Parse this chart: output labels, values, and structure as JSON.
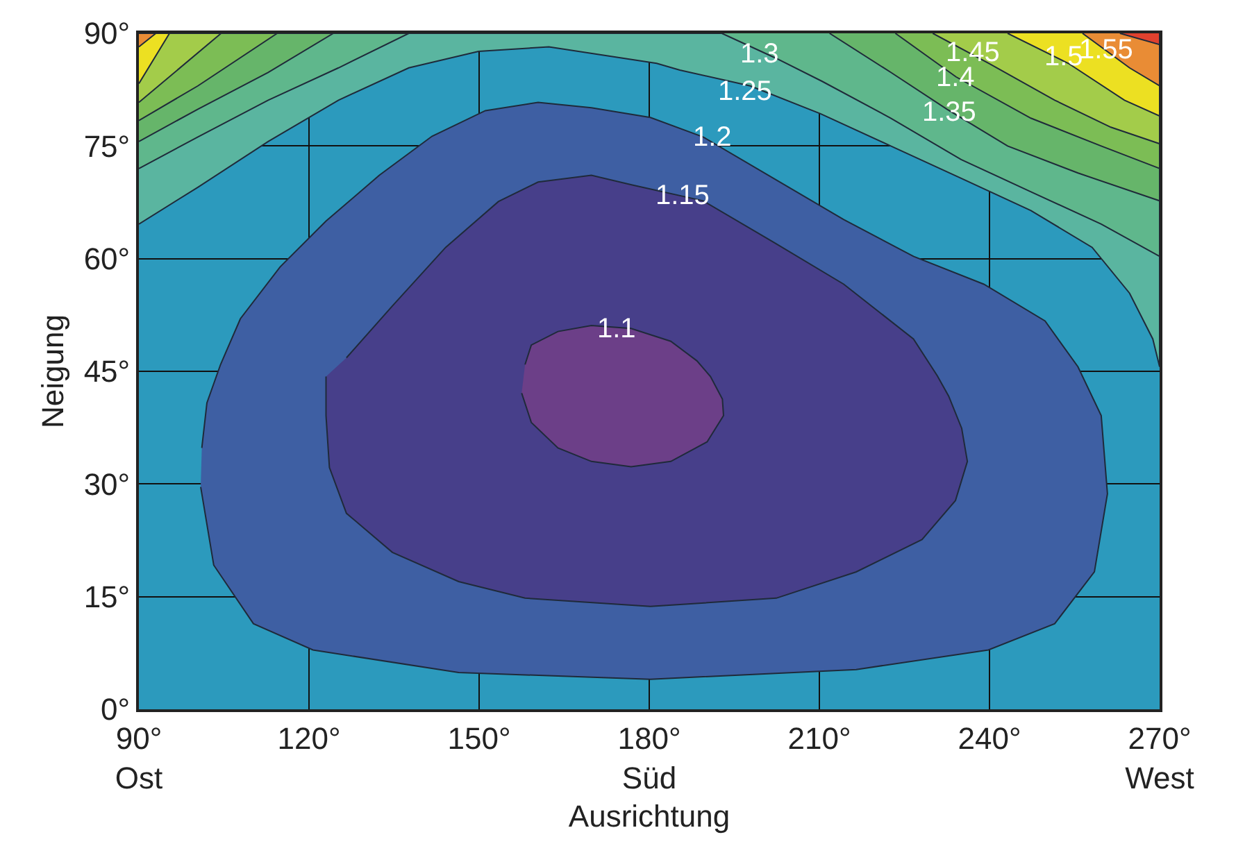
{
  "chart_data": {
    "type": "area",
    "xlabel": "Ausrichtung",
    "ylabel": "Neigung",
    "series": [
      {
        "color": "#5ab5a0",
        "x": [
          90,
          100.4,
          112.8,
          125.2,
          137.6,
          149.9,
          162.3,
          181.3,
          185.4,
          197.8,
          210.2,
          222.6,
          235,
          247.3,
          258.1,
          264.7,
          268.8,
          270,
          270,
          90
        ],
        "values": [
          64.6,
          69.5,
          75.6,
          81.1,
          85.4,
          87.6,
          88.2,
          86,
          85.1,
          83,
          79.3,
          75,
          70.7,
          66.4,
          61.5,
          55.4,
          49.3,
          45.6,
          90,
          90
        ]
      },
      {
        "color": "#5fb78c",
        "x": [
          90,
          100.4,
          112.8,
          125.2,
          137.6,
          90,
          null,
          192.8,
          202.3,
          210.5,
          222.6,
          235,
          247.3,
          259.7,
          270,
          270
        ],
        "values": [
          72,
          76.2,
          81.1,
          85.4,
          90,
          90,
          null,
          90,
          86.7,
          83.6,
          78.7,
          73.2,
          68.9,
          64.6,
          60.3,
          90
        ]
      },
      {
        "color": "#66b56a",
        "x": [
          90,
          100.4,
          112.8,
          124.3,
          90,
          null,
          211.8,
          222.6,
          232.5,
          243.2,
          255.6,
          270,
          270
        ],
        "values": [
          75.6,
          79.9,
          84.8,
          90,
          90,
          null,
          90,
          84.8,
          79.9,
          75,
          71.4,
          67.7,
          90
        ]
      },
      {
        "color": "#7cbd55",
        "x": [
          90,
          100.4,
          114.4,
          90,
          null,
          223.4,
          234.1,
          247.3,
          259.7,
          270,
          270
        ],
        "values": [
          78.4,
          83,
          90,
          90,
          null,
          90,
          84.2,
          78.7,
          75,
          72,
          90
        ]
      },
      {
        "color": "#a3cc4a",
        "x": [
          90,
          104.5,
          90,
          null,
          230,
          239.9,
          251.5,
          261.4,
          270,
          270
        ],
        "values": [
          80.8,
          90,
          90,
          null,
          90,
          86,
          81.1,
          77.5,
          75.3,
          90
        ]
      },
      {
        "color": "#ece022",
        "x": [
          90,
          95.4,
          90,
          null,
          243.2,
          253.9,
          263.8,
          270,
          270
        ],
        "values": [
          83.3,
          90,
          90,
          null,
          90,
          86,
          81.1,
          79,
          90
        ]
      },
      {
        "color": "#e98c35",
        "x": [
          90,
          93,
          90,
          null,
          256.4,
          264.7,
          270,
          270
        ],
        "values": [
          88.2,
          90,
          90,
          null,
          90,
          85.4,
          83,
          90
        ]
      },
      {
        "color": "#e0412e",
        "x": [
          263,
          270,
          270
        ],
        "values": [
          90,
          88.5,
          90
        ]
      },
      {
        "color": "#3e5fa3",
        "x": [
          100.9,
          103.2,
          110.2,
          120.7,
          146.4,
          180.2,
          216.5,
          239.8,
          251.5,
          258.5,
          260.8,
          259.7,
          255.6,
          249.8,
          239,
          226.6,
          214.3,
          201.9,
          189.5,
          180.2,
          169.8,
          160.4,
          151.1,
          141.7,
          132.4,
          123,
          114.9,
          107.9,
          104.4,
          102,
          101.1
        ],
        "values": [
          29.6,
          19.2,
          11.4,
          7.9,
          4.9,
          4,
          5.3,
          7.9,
          11.4,
          18.3,
          28.7,
          39.1,
          45.6,
          51.7,
          56.6,
          60.3,
          65.2,
          70.7,
          76.2,
          78.8,
          80.1,
          80.8,
          79.7,
          76.3,
          71.1,
          65,
          58.9,
          52,
          45.9,
          40.8,
          34.8
        ]
      },
      {
        "color": "#473f8a",
        "x": [
          123,
          123,
          123.6,
          126.6,
          134.7,
          146.4,
          158.1,
          180.2,
          202.4,
          216.5,
          228.1,
          234,
          236.1,
          235.1,
          232.8,
          230.8,
          226.6,
          214.3,
          201.9,
          189.5,
          177,
          169.8,
          160.4,
          153.4,
          144.1,
          134.7,
          126.6
        ],
        "values": [
          44.3,
          39.1,
          32.2,
          26.1,
          20.9,
          17,
          14.8,
          13.7,
          14.8,
          18.3,
          22.6,
          27.8,
          33,
          37.4,
          41.7,
          44.4,
          49.3,
          56.6,
          62.2,
          67.7,
          69.8,
          71.1,
          70.2,
          67.6,
          61.5,
          53.7,
          46.8
        ]
      },
      {
        "color": "#6c3f88",
        "x": [
          157.5,
          159.2,
          163.9,
          169.8,
          176.8,
          183.8,
          190.2,
          193.1,
          192.9,
          190.8,
          188.4,
          183.8,
          176.8,
          169.8,
          163.9,
          159.2,
          158.1
        ],
        "values": [
          42.1,
          38.2,
          34.8,
          33,
          32.3,
          33,
          35.6,
          39.1,
          41.3,
          44.3,
          46.4,
          49,
          50.7,
          51.1,
          50.3,
          48.5,
          45.9
        ]
      }
    ],
    "bands": [
      {
        "axis": "y",
        "from": 0,
        "to": 90,
        "color": "#2c9abd"
      }
    ],
    "annotations": [
      {
        "text": "1.1",
        "x": 174.2,
        "y": 50.7
      },
      {
        "text": "1.15",
        "x": 185.8,
        "y": 68.3
      },
      {
        "text": "1.2",
        "x": 191.2,
        "y": 76.2
      },
      {
        "text": "1.25",
        "x": 196.9,
        "y": 82.3
      },
      {
        "text": "1.3",
        "x": 199.4,
        "y": 87.2
      },
      {
        "text": "1.35",
        "x": 232.8,
        "y": 79.5
      },
      {
        "text": "1.4",
        "x": 234.1,
        "y": 84.1
      },
      {
        "text": "1.45",
        "x": 237,
        "y": 87.4
      },
      {
        "text": "1.5",
        "x": 253.1,
        "y": 86.9
      },
      {
        "text": "1.55",
        "x": 260.5,
        "y": 87.7
      }
    ],
    "xlim": [
      90,
      270
    ],
    "xticks": [
      {
        "value": 90,
        "label": "90°\nOst"
      },
      {
        "value": 120,
        "label": "120°"
      },
      {
        "value": 150,
        "label": "150°"
      },
      {
        "value": 180,
        "label": "180°\nSüd"
      },
      {
        "value": 210,
        "label": "210°"
      },
      {
        "value": 240,
        "label": "240°"
      },
      {
        "value": 270,
        "label": "270°\nWest"
      }
    ],
    "ylim": [
      0,
      90
    ],
    "yticks": [
      {
        "value": 0,
        "label": "0°"
      },
      {
        "value": 15,
        "label": "15°"
      },
      {
        "value": 30,
        "label": "30°"
      },
      {
        "value": 45,
        "label": "45°"
      },
      {
        "value": 60,
        "label": "60°"
      },
      {
        "value": 75,
        "label": "75°"
      },
      {
        "value": 90,
        "label": "90°"
      }
    ],
    "grid": true
  }
}
